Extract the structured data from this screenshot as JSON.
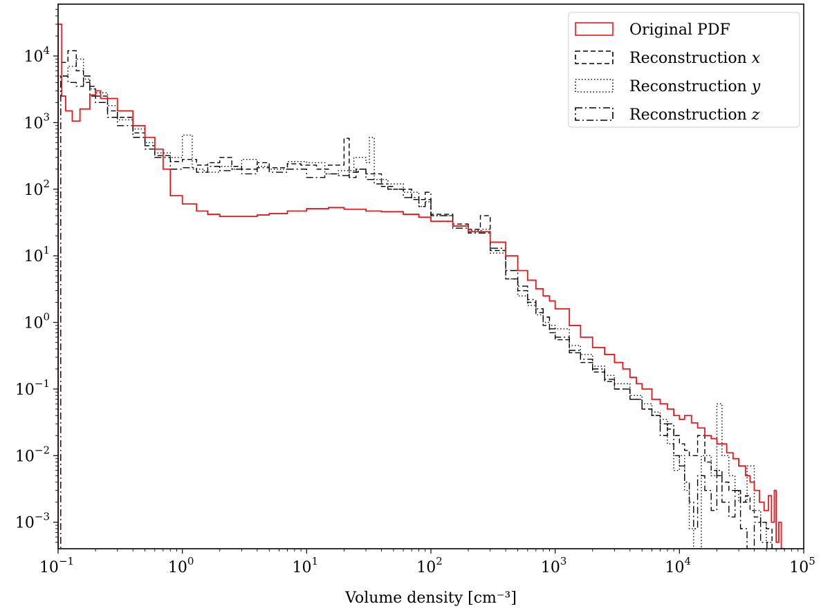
{
  "chart_data": {
    "type": "line",
    "xlabel": "Volume density [cm⁻³]",
    "ylabel": "",
    "xscale": "log",
    "yscale": "log",
    "xlim": [
      0.1,
      100000
    ],
    "ylim": [
      0.0004,
      60000
    ],
    "grid": false,
    "legend_position": "top-right",
    "x_ticks": [
      {
        "value": 0.1,
        "base": "10",
        "exp": "−1"
      },
      {
        "value": 1,
        "base": "10",
        "exp": "0"
      },
      {
        "value": 10,
        "base": "10",
        "exp": "1"
      },
      {
        "value": 100,
        "base": "10",
        "exp": "2"
      },
      {
        "value": 1000,
        "base": "10",
        "exp": "3"
      },
      {
        "value": 10000,
        "base": "10",
        "exp": "4"
      },
      {
        "value": 100000,
        "base": "10",
        "exp": "5"
      }
    ],
    "y_ticks": [
      {
        "value": 0.001,
        "base": "10",
        "exp": "−3"
      },
      {
        "value": 0.01,
        "base": "10",
        "exp": "−2"
      },
      {
        "value": 0.1,
        "base": "10",
        "exp": "−1"
      },
      {
        "value": 1,
        "base": "10",
        "exp": "0"
      },
      {
        "value": 10,
        "base": "10",
        "exp": "1"
      },
      {
        "value": 100,
        "base": "10",
        "exp": "2"
      },
      {
        "value": 1000,
        "base": "10",
        "exp": "3"
      },
      {
        "value": 10000,
        "base": "10",
        "exp": "4"
      }
    ],
    "series": [
      {
        "name": "Original PDF",
        "label_text": "Original PDF",
        "label_var": "",
        "color": "#e8171c",
        "dash": "",
        "points": [
          [
            0.1,
            30000
          ],
          [
            0.107,
            2500
          ],
          [
            0.115,
            1500
          ],
          [
            0.13,
            1050
          ],
          [
            0.15,
            1600
          ],
          [
            0.18,
            2600
          ],
          [
            0.2,
            3000
          ],
          [
            0.22,
            2300
          ],
          [
            0.3,
            1500
          ],
          [
            0.4,
            900
          ],
          [
            0.5,
            600
          ],
          [
            0.6,
            400
          ],
          [
            0.7,
            200
          ],
          [
            0.8,
            80
          ],
          [
            1.0,
            60
          ],
          [
            1.3,
            47
          ],
          [
            1.6,
            42
          ],
          [
            2,
            39
          ],
          [
            3,
            39
          ],
          [
            4,
            41
          ],
          [
            5,
            43
          ],
          [
            7,
            47
          ],
          [
            10,
            51
          ],
          [
            15,
            53
          ],
          [
            20,
            50
          ],
          [
            30,
            47
          ],
          [
            40,
            46
          ],
          [
            60,
            42
          ],
          [
            80,
            38
          ],
          [
            100,
            33
          ],
          [
            150,
            28
          ],
          [
            200,
            23
          ],
          [
            300,
            16
          ],
          [
            400,
            10
          ],
          [
            500,
            6
          ],
          [
            600,
            4.3
          ],
          [
            700,
            3.2
          ],
          [
            800,
            2.5
          ],
          [
            900,
            2.1
          ],
          [
            1000,
            1.6
          ],
          [
            1300,
            0.9
          ],
          [
            1600,
            0.6
          ],
          [
            2000,
            0.42
          ],
          [
            2500,
            0.33
          ],
          [
            3000,
            0.25
          ],
          [
            3500,
            0.2
          ],
          [
            4000,
            0.15
          ],
          [
            4500,
            0.12
          ],
          [
            5000,
            0.1
          ],
          [
            6000,
            0.07
          ],
          [
            7000,
            0.06
          ],
          [
            8000,
            0.05
          ],
          [
            9000,
            0.04
          ],
          [
            10000,
            0.035
          ],
          [
            11000,
            0.04
          ],
          [
            12500,
            0.031
          ],
          [
            14000,
            0.026
          ],
          [
            16000,
            0.02
          ],
          [
            18000,
            0.018
          ],
          [
            20000,
            0.015
          ],
          [
            24000,
            0.011
          ],
          [
            27000,
            0.009
          ],
          [
            30000,
            0.007
          ],
          [
            34000,
            0.005
          ],
          [
            37000,
            0.004
          ],
          [
            40000,
            0.003
          ],
          [
            44000,
            0.002
          ],
          [
            48000,
            0.0015
          ],
          [
            52000,
            0.0025
          ],
          [
            55000,
            0.001
          ],
          [
            58000,
            0.003
          ],
          [
            60000,
            0.0005
          ],
          [
            63000,
            0.001
          ],
          [
            66000,
            0.0004
          ]
        ]
      },
      {
        "name": "Reconstruction x",
        "label_text": "Reconstruction ",
        "label_var": "x",
        "color": "#000000",
        "dash": "7,4",
        "points": [
          [
            0.1,
            8000
          ],
          [
            0.12,
            12000
          ],
          [
            0.14,
            6000
          ],
          [
            0.16,
            4000
          ],
          [
            0.18,
            3500
          ],
          [
            0.2,
            2500
          ],
          [
            0.25,
            1500
          ],
          [
            0.3,
            1200
          ],
          [
            0.4,
            700
          ],
          [
            0.5,
            450
          ],
          [
            0.6,
            320
          ],
          [
            0.8,
            260
          ],
          [
            1.0,
            280
          ],
          [
            1.3,
            230
          ],
          [
            1.6,
            250
          ],
          [
            2,
            300
          ],
          [
            2.5,
            220
          ],
          [
            3,
            200
          ],
          [
            4,
            250
          ],
          [
            5,
            210
          ],
          [
            7,
            240
          ],
          [
            9,
            230
          ],
          [
            12,
            200
          ],
          [
            15,
            230
          ],
          [
            20,
            580
          ],
          [
            22,
            150
          ],
          [
            25,
            200
          ],
          [
            30,
            170
          ],
          [
            40,
            110
          ],
          [
            50,
            100
          ],
          [
            70,
            70
          ],
          [
            100,
            42
          ],
          [
            150,
            30
          ],
          [
            200,
            25
          ],
          [
            250,
            40
          ],
          [
            300,
            12
          ],
          [
            400,
            4.5
          ],
          [
            500,
            3
          ],
          [
            600,
            2
          ],
          [
            700,
            1.4
          ],
          [
            800,
            0.9
          ],
          [
            900,
            0.7
          ],
          [
            1000,
            0.55
          ],
          [
            1300,
            0.35
          ],
          [
            1600,
            0.25
          ],
          [
            2000,
            0.18
          ],
          [
            2500,
            0.13
          ],
          [
            3000,
            0.1
          ],
          [
            4000,
            0.07
          ],
          [
            5000,
            0.05
          ],
          [
            6000,
            0.04
          ],
          [
            7000,
            0.03
          ],
          [
            8000,
            0.025
          ],
          [
            9000,
            0.02
          ],
          [
            10000,
            0.015
          ],
          [
            11000,
            0.012
          ],
          [
            12000,
            0.01
          ],
          [
            14000,
            0.02
          ],
          [
            16000,
            0.008
          ],
          [
            18000,
            0.006
          ],
          [
            20000,
            0.005
          ],
          [
            22000,
            0.004
          ],
          [
            25000,
            0.003
          ],
          [
            28000,
            0.003
          ],
          [
            31000,
            0.002
          ],
          [
            34000,
            0.0025
          ],
          [
            37000,
            0.0015
          ],
          [
            40000,
            0.0012
          ],
          [
            45000,
            0.001
          ],
          [
            50000,
            0.0008
          ]
        ]
      },
      {
        "name": "Reconstruction y",
        "label_text": "Reconstruction ",
        "label_var": "y",
        "color": "#000000",
        "dash": "1.5,3",
        "points": [
          [
            0.1,
            5000
          ],
          [
            0.12,
            7000
          ],
          [
            0.14,
            9000
          ],
          [
            0.16,
            4500
          ],
          [
            0.18,
            3200
          ],
          [
            0.2,
            2800
          ],
          [
            0.25,
            1800
          ],
          [
            0.3,
            1100
          ],
          [
            0.4,
            800
          ],
          [
            0.5,
            500
          ],
          [
            0.6,
            350
          ],
          [
            0.8,
            300
          ],
          [
            1.0,
            650
          ],
          [
            1.2,
            200
          ],
          [
            1.5,
            180
          ],
          [
            2,
            220
          ],
          [
            2.5,
            200
          ],
          [
            3,
            280
          ],
          [
            4,
            220
          ],
          [
            5,
            200
          ],
          [
            7,
            260
          ],
          [
            10,
            250
          ],
          [
            14,
            170
          ],
          [
            18,
            190
          ],
          [
            24,
            300
          ],
          [
            30,
            250
          ],
          [
            32,
            600
          ],
          [
            35,
            140
          ],
          [
            45,
            120
          ],
          [
            60,
            90
          ],
          [
            80,
            55
          ],
          [
            90,
            65
          ],
          [
            100,
            40
          ],
          [
            150,
            28
          ],
          [
            200,
            24
          ],
          [
            260,
            25
          ],
          [
            300,
            11
          ],
          [
            400,
            4.5
          ],
          [
            500,
            2.5
          ],
          [
            600,
            1.8
          ],
          [
            700,
            1.3
          ],
          [
            800,
            1.0
          ],
          [
            900,
            0.9
          ],
          [
            1000,
            0.8
          ],
          [
            1300,
            0.45
          ],
          [
            1600,
            0.33
          ],
          [
            2000,
            0.22
          ],
          [
            2500,
            0.16
          ],
          [
            3000,
            0.12
          ],
          [
            4000,
            0.08
          ],
          [
            5000,
            0.06
          ],
          [
            6000,
            0.045
          ],
          [
            7000,
            0.035
          ],
          [
            8000,
            0.015
          ],
          [
            9000,
            0.006
          ],
          [
            10000,
            0.01
          ],
          [
            11000,
            0.003
          ],
          [
            12000,
            0.0008
          ],
          [
            13000,
            0.0004
          ],
          [
            15000,
            0.01
          ],
          [
            18000,
            0.005
          ],
          [
            20000,
            0.06
          ],
          [
            22000,
            0.01
          ],
          [
            25000,
            0.005
          ],
          [
            28000,
            0.003
          ],
          [
            30000,
            0.002
          ],
          [
            35000,
            0.007
          ],
          [
            40000,
            0.0015
          ],
          [
            45000,
            0.001
          ],
          [
            50000,
            0.0005
          ]
        ]
      },
      {
        "name": "Reconstruction z",
        "label_text": "Reconstruction ",
        "label_var": "z",
        "color": "#000000",
        "dash": "10,4,2,4",
        "points": [
          [
            0.1,
            0.0003
          ],
          [
            0.105,
            5000
          ],
          [
            0.12,
            4000
          ],
          [
            0.14,
            3500
          ],
          [
            0.16,
            5000
          ],
          [
            0.18,
            2500
          ],
          [
            0.2,
            2000
          ],
          [
            0.25,
            1200
          ],
          [
            0.3,
            900
          ],
          [
            0.4,
            600
          ],
          [
            0.5,
            400
          ],
          [
            0.6,
            300
          ],
          [
            0.8,
            200
          ],
          [
            1.0,
            210
          ],
          [
            1.3,
            180
          ],
          [
            1.6,
            220
          ],
          [
            2,
            190
          ],
          [
            2.5,
            200
          ],
          [
            3,
            170
          ],
          [
            4,
            210
          ],
          [
            5,
            180
          ],
          [
            7,
            200
          ],
          [
            10,
            150
          ],
          [
            14,
            170
          ],
          [
            18,
            160
          ],
          [
            22,
            180
          ],
          [
            26,
            200
          ],
          [
            30,
            140
          ],
          [
            35,
            120
          ],
          [
            45,
            100
          ],
          [
            60,
            75
          ],
          [
            80,
            55
          ],
          [
            90,
            90
          ],
          [
            100,
            40
          ],
          [
            150,
            26
          ],
          [
            200,
            22
          ],
          [
            300,
            13
          ],
          [
            400,
            6
          ],
          [
            500,
            3.5
          ],
          [
            600,
            2.2
          ],
          [
            700,
            1.6
          ],
          [
            800,
            1.2
          ],
          [
            900,
            0.8
          ],
          [
            1000,
            0.6
          ],
          [
            1300,
            0.38
          ],
          [
            1600,
            0.28
          ],
          [
            2000,
            0.2
          ],
          [
            2500,
            0.14
          ],
          [
            3000,
            0.1
          ],
          [
            4000,
            0.07
          ],
          [
            5000,
            0.05
          ],
          [
            6000,
            0.04
          ],
          [
            7000,
            0.02
          ],
          [
            8000,
            0.03
          ],
          [
            9000,
            0.01
          ],
          [
            10000,
            0.007
          ],
          [
            11000,
            0.004
          ],
          [
            12000,
            0.002
          ],
          [
            13000,
            0.0008
          ],
          [
            14000,
            0.005
          ],
          [
            16000,
            0.003
          ],
          [
            18000,
            0.0015
          ],
          [
            20000,
            0.006
          ],
          [
            22000,
            0.002
          ],
          [
            25000,
            0.0012
          ],
          [
            28000,
            0.003
          ],
          [
            31000,
            0.0008
          ],
          [
            35000,
            0.0004
          ],
          [
            40000,
            0.001
          ],
          [
            45000,
            0.0005
          ]
        ]
      }
    ]
  }
}
